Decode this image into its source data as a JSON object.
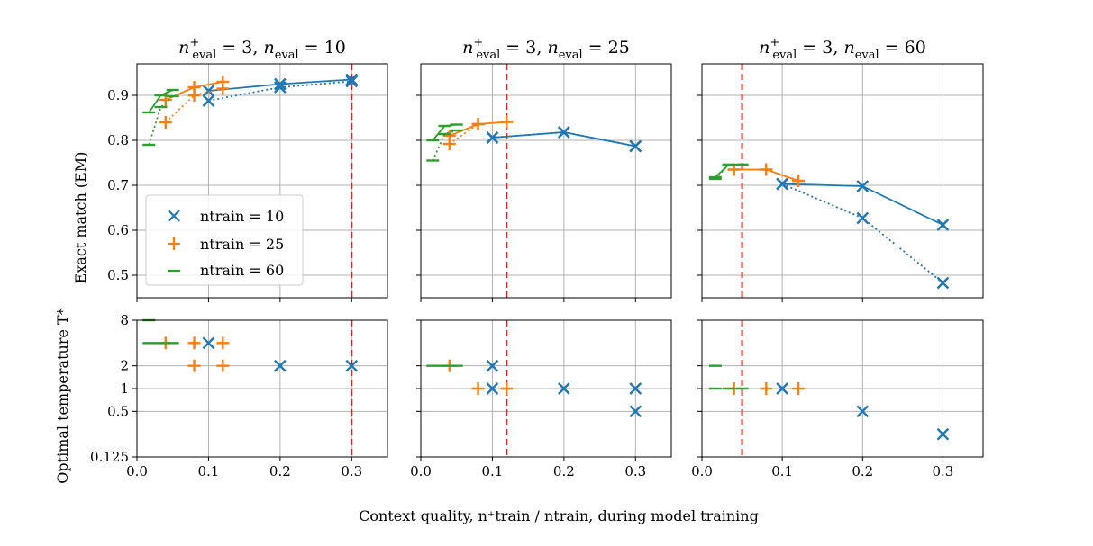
{
  "figure": {
    "xlabel_text": "Context quality, n⁺train / ntrain, during model training",
    "ylabel_top": "Exact match (EM)",
    "ylabel_bottom": "Optimal temperature T*"
  },
  "legend": [
    {
      "label": "n_train = 10",
      "text": "ntrain = 10",
      "marker": "x",
      "color": "#1f77b4"
    },
    {
      "label": "n_train = 25",
      "text": "ntrain = 25",
      "marker": "+",
      "color": "#ff7f0e"
    },
    {
      "label": "n_train = 60",
      "text": "ntrain = 60",
      "marker": "_",
      "color": "#2ca02c"
    }
  ],
  "colors": {
    "n10": "#1f77b4",
    "n25": "#ff7f0e",
    "n60": "#2ca02c",
    "ref_line": "#d62728",
    "grid": "#b0b0b0"
  },
  "chart_data": [
    {
      "type": "line",
      "panel": "top-1",
      "title": "n⁺eval = 3, neval = 10",
      "ylabel": "Exact match (EM)",
      "xlim": [
        0,
        0.35
      ],
      "ylim": [
        0.45,
        0.97
      ],
      "xticks": [
        0,
        0.1,
        0.2,
        0.3
      ],
      "xtick_labels": [
        "",
        "",
        "",
        ""
      ],
      "yticks": [
        0.5,
        0.6,
        0.7,
        0.8,
        0.9
      ],
      "ytick_labels": [
        "0.5",
        "0.6",
        "0.7",
        "0.8",
        "0.9"
      ],
      "grid": true,
      "vline": 0.3,
      "legend_position": "lower-left",
      "series": [
        {
          "key": "n10",
          "style": "solid",
          "x": [
            0.1,
            0.2,
            0.3
          ],
          "y": [
            0.91,
            0.925,
            0.935
          ]
        },
        {
          "key": "n10",
          "style": "dotted",
          "x": [
            0.1,
            0.2,
            0.3
          ],
          "y": [
            0.888,
            0.918,
            0.931
          ]
        },
        {
          "key": "n25",
          "style": "solid",
          "x": [
            0.04,
            0.08,
            0.12
          ],
          "y": [
            0.89,
            0.918,
            0.93
          ]
        },
        {
          "key": "n25",
          "style": "dotted",
          "x": [
            0.04,
            0.08,
            0.12
          ],
          "y": [
            0.84,
            0.9,
            0.915
          ]
        },
        {
          "key": "n60",
          "style": "solid",
          "x": [
            0.0167,
            0.0333,
            0.05
          ],
          "y": [
            0.862,
            0.9,
            0.912
          ]
        },
        {
          "key": "n60",
          "style": "dotted",
          "x": [
            0.0167,
            0.0333,
            0.05
          ],
          "y": [
            0.79,
            0.874,
            0.898
          ]
        }
      ]
    },
    {
      "type": "line",
      "panel": "top-2",
      "title": "n⁺eval = 3, neval = 25",
      "xlim": [
        0,
        0.35
      ],
      "ylim": [
        0.45,
        0.97
      ],
      "xticks": [
        0,
        0.1,
        0.2,
        0.3
      ],
      "xtick_labels": [
        "",
        "",
        "",
        ""
      ],
      "yticks": [
        0.5,
        0.6,
        0.7,
        0.8,
        0.9
      ],
      "ytick_labels": [
        "",
        "",
        "",
        "",
        ""
      ],
      "grid": true,
      "vline": 0.12,
      "series": [
        {
          "key": "n10",
          "style": "solid",
          "x": [
            0.1,
            0.2,
            0.3
          ],
          "y": [
            0.806,
            0.818,
            0.787
          ]
        },
        {
          "key": "n10",
          "style": "dotted",
          "x": [
            0.1,
            0.2,
            0.3
          ],
          "y": [
            0.806,
            0.818,
            0.787
          ]
        },
        {
          "key": "n25",
          "style": "solid",
          "x": [
            0.04,
            0.08,
            0.12
          ],
          "y": [
            0.81,
            0.836,
            0.841
          ]
        },
        {
          "key": "n25",
          "style": "dotted",
          "x": [
            0.04,
            0.08,
            0.12
          ],
          "y": [
            0.792,
            0.836,
            0.841
          ]
        },
        {
          "key": "n60",
          "style": "solid",
          "x": [
            0.0167,
            0.0333,
            0.05
          ],
          "y": [
            0.8,
            0.832,
            0.835
          ]
        },
        {
          "key": "n60",
          "style": "dotted",
          "x": [
            0.0167,
            0.0333,
            0.05
          ],
          "y": [
            0.755,
            0.814,
            0.822
          ]
        }
      ]
    },
    {
      "type": "line",
      "panel": "top-3",
      "title": "n⁺eval = 3, neval = 60",
      "xlim": [
        0,
        0.35
      ],
      "ylim": [
        0.45,
        0.97
      ],
      "xticks": [
        0,
        0.1,
        0.2,
        0.3
      ],
      "xtick_labels": [
        "",
        "",
        "",
        ""
      ],
      "yticks": [
        0.5,
        0.6,
        0.7,
        0.8,
        0.9
      ],
      "ytick_labels": [
        "",
        "",
        "",
        "",
        ""
      ],
      "grid": true,
      "vline": 0.05,
      "series": [
        {
          "key": "n10",
          "style": "solid",
          "x": [
            0.1,
            0.2,
            0.3
          ],
          "y": [
            0.703,
            0.698,
            0.612
          ]
        },
        {
          "key": "n10",
          "style": "dotted",
          "x": [
            0.1,
            0.2,
            0.3
          ],
          "y": [
            0.703,
            0.627,
            0.483
          ]
        },
        {
          "key": "n25",
          "style": "solid",
          "x": [
            0.04,
            0.08,
            0.12
          ],
          "y": [
            0.735,
            0.735,
            0.71
          ]
        },
        {
          "key": "n25",
          "style": "dotted",
          "x": [
            0.04,
            0.08,
            0.12
          ],
          "y": [
            0.735,
            0.735,
            0.71
          ]
        },
        {
          "key": "n60",
          "style": "solid",
          "x": [
            0.0167,
            0.0333,
            0.05
          ],
          "y": [
            0.718,
            0.746,
            0.746
          ]
        },
        {
          "key": "n60",
          "style": "dotted",
          "x": [
            0.0167,
            0.0333,
            0.05
          ],
          "y": [
            0.714,
            0.746,
            0.746
          ]
        }
      ]
    },
    {
      "type": "scatter",
      "panel": "bottom-1",
      "ylabel": "Optimal temperature T*",
      "yscale": "log2",
      "xlim": [
        0,
        0.35
      ],
      "ylim": [
        0.125,
        8
      ],
      "xticks": [
        0,
        0.1,
        0.2,
        0.3
      ],
      "xtick_labels": [
        "0.0",
        "0.1",
        "0.2",
        "0.3"
      ],
      "yticks": [
        0.125,
        0.5,
        1,
        2,
        8
      ],
      "ytick_labels": [
        "0.125",
        "0.5",
        "1",
        "2",
        "8"
      ],
      "grid": true,
      "vline": 0.3,
      "series": [
        {
          "key": "n10",
          "x": [
            0.1,
            0.2,
            0.3
          ],
          "y": [
            4,
            2,
            2
          ]
        },
        {
          "key": "n25",
          "x": [
            0.04,
            0.08,
            0.12,
            0.08,
            0.12
          ],
          "y": [
            4,
            4,
            4,
            2,
            2
          ]
        },
        {
          "key": "n60",
          "x": [
            0.0167,
            0.0333,
            0.05,
            0.0167
          ],
          "y": [
            4,
            4,
            4,
            8
          ]
        }
      ]
    },
    {
      "type": "scatter",
      "panel": "bottom-2",
      "yscale": "log2",
      "xlim": [
        0,
        0.35
      ],
      "ylim": [
        0.125,
        8
      ],
      "xticks": [
        0,
        0.1,
        0.2,
        0.3
      ],
      "xtick_labels": [
        "0.0",
        "0.1",
        "0.2",
        "0.3"
      ],
      "yticks": [
        0.125,
        0.5,
        1,
        2,
        8
      ],
      "ytick_labels": [
        "",
        "",
        "",
        "",
        ""
      ],
      "grid": true,
      "vline": 0.12,
      "series": [
        {
          "key": "n10",
          "x": [
            0.1,
            0.1,
            0.2,
            0.3,
            0.3
          ],
          "y": [
            2,
            1,
            1,
            1,
            0.5
          ]
        },
        {
          "key": "n25",
          "x": [
            0.04,
            0.08,
            0.12
          ],
          "y": [
            2,
            1,
            1
          ]
        },
        {
          "key": "n60",
          "x": [
            0.0167,
            0.0333,
            0.05
          ],
          "y": [
            2,
            2,
            2
          ]
        }
      ]
    },
    {
      "type": "scatter",
      "panel": "bottom-3",
      "yscale": "log2",
      "xlim": [
        0,
        0.35
      ],
      "ylim": [
        0.125,
        8
      ],
      "xticks": [
        0,
        0.1,
        0.2,
        0.3
      ],
      "xtick_labels": [
        "0.0",
        "0.1",
        "0.2",
        "0.3"
      ],
      "yticks": [
        0.125,
        0.5,
        1,
        2,
        8
      ],
      "ytick_labels": [
        "",
        "",
        "",
        "",
        ""
      ],
      "grid": true,
      "vline": 0.05,
      "series": [
        {
          "key": "n10",
          "x": [
            0.1,
            0.2,
            0.3
          ],
          "y": [
            1,
            0.5,
            0.25
          ]
        },
        {
          "key": "n25",
          "x": [
            0.04,
            0.08,
            0.12
          ],
          "y": [
            1,
            1,
            1
          ]
        },
        {
          "key": "n60",
          "x": [
            0.0167,
            0.0333,
            0.05,
            0.0167
          ],
          "y": [
            1,
            1,
            1,
            2
          ]
        }
      ]
    }
  ]
}
